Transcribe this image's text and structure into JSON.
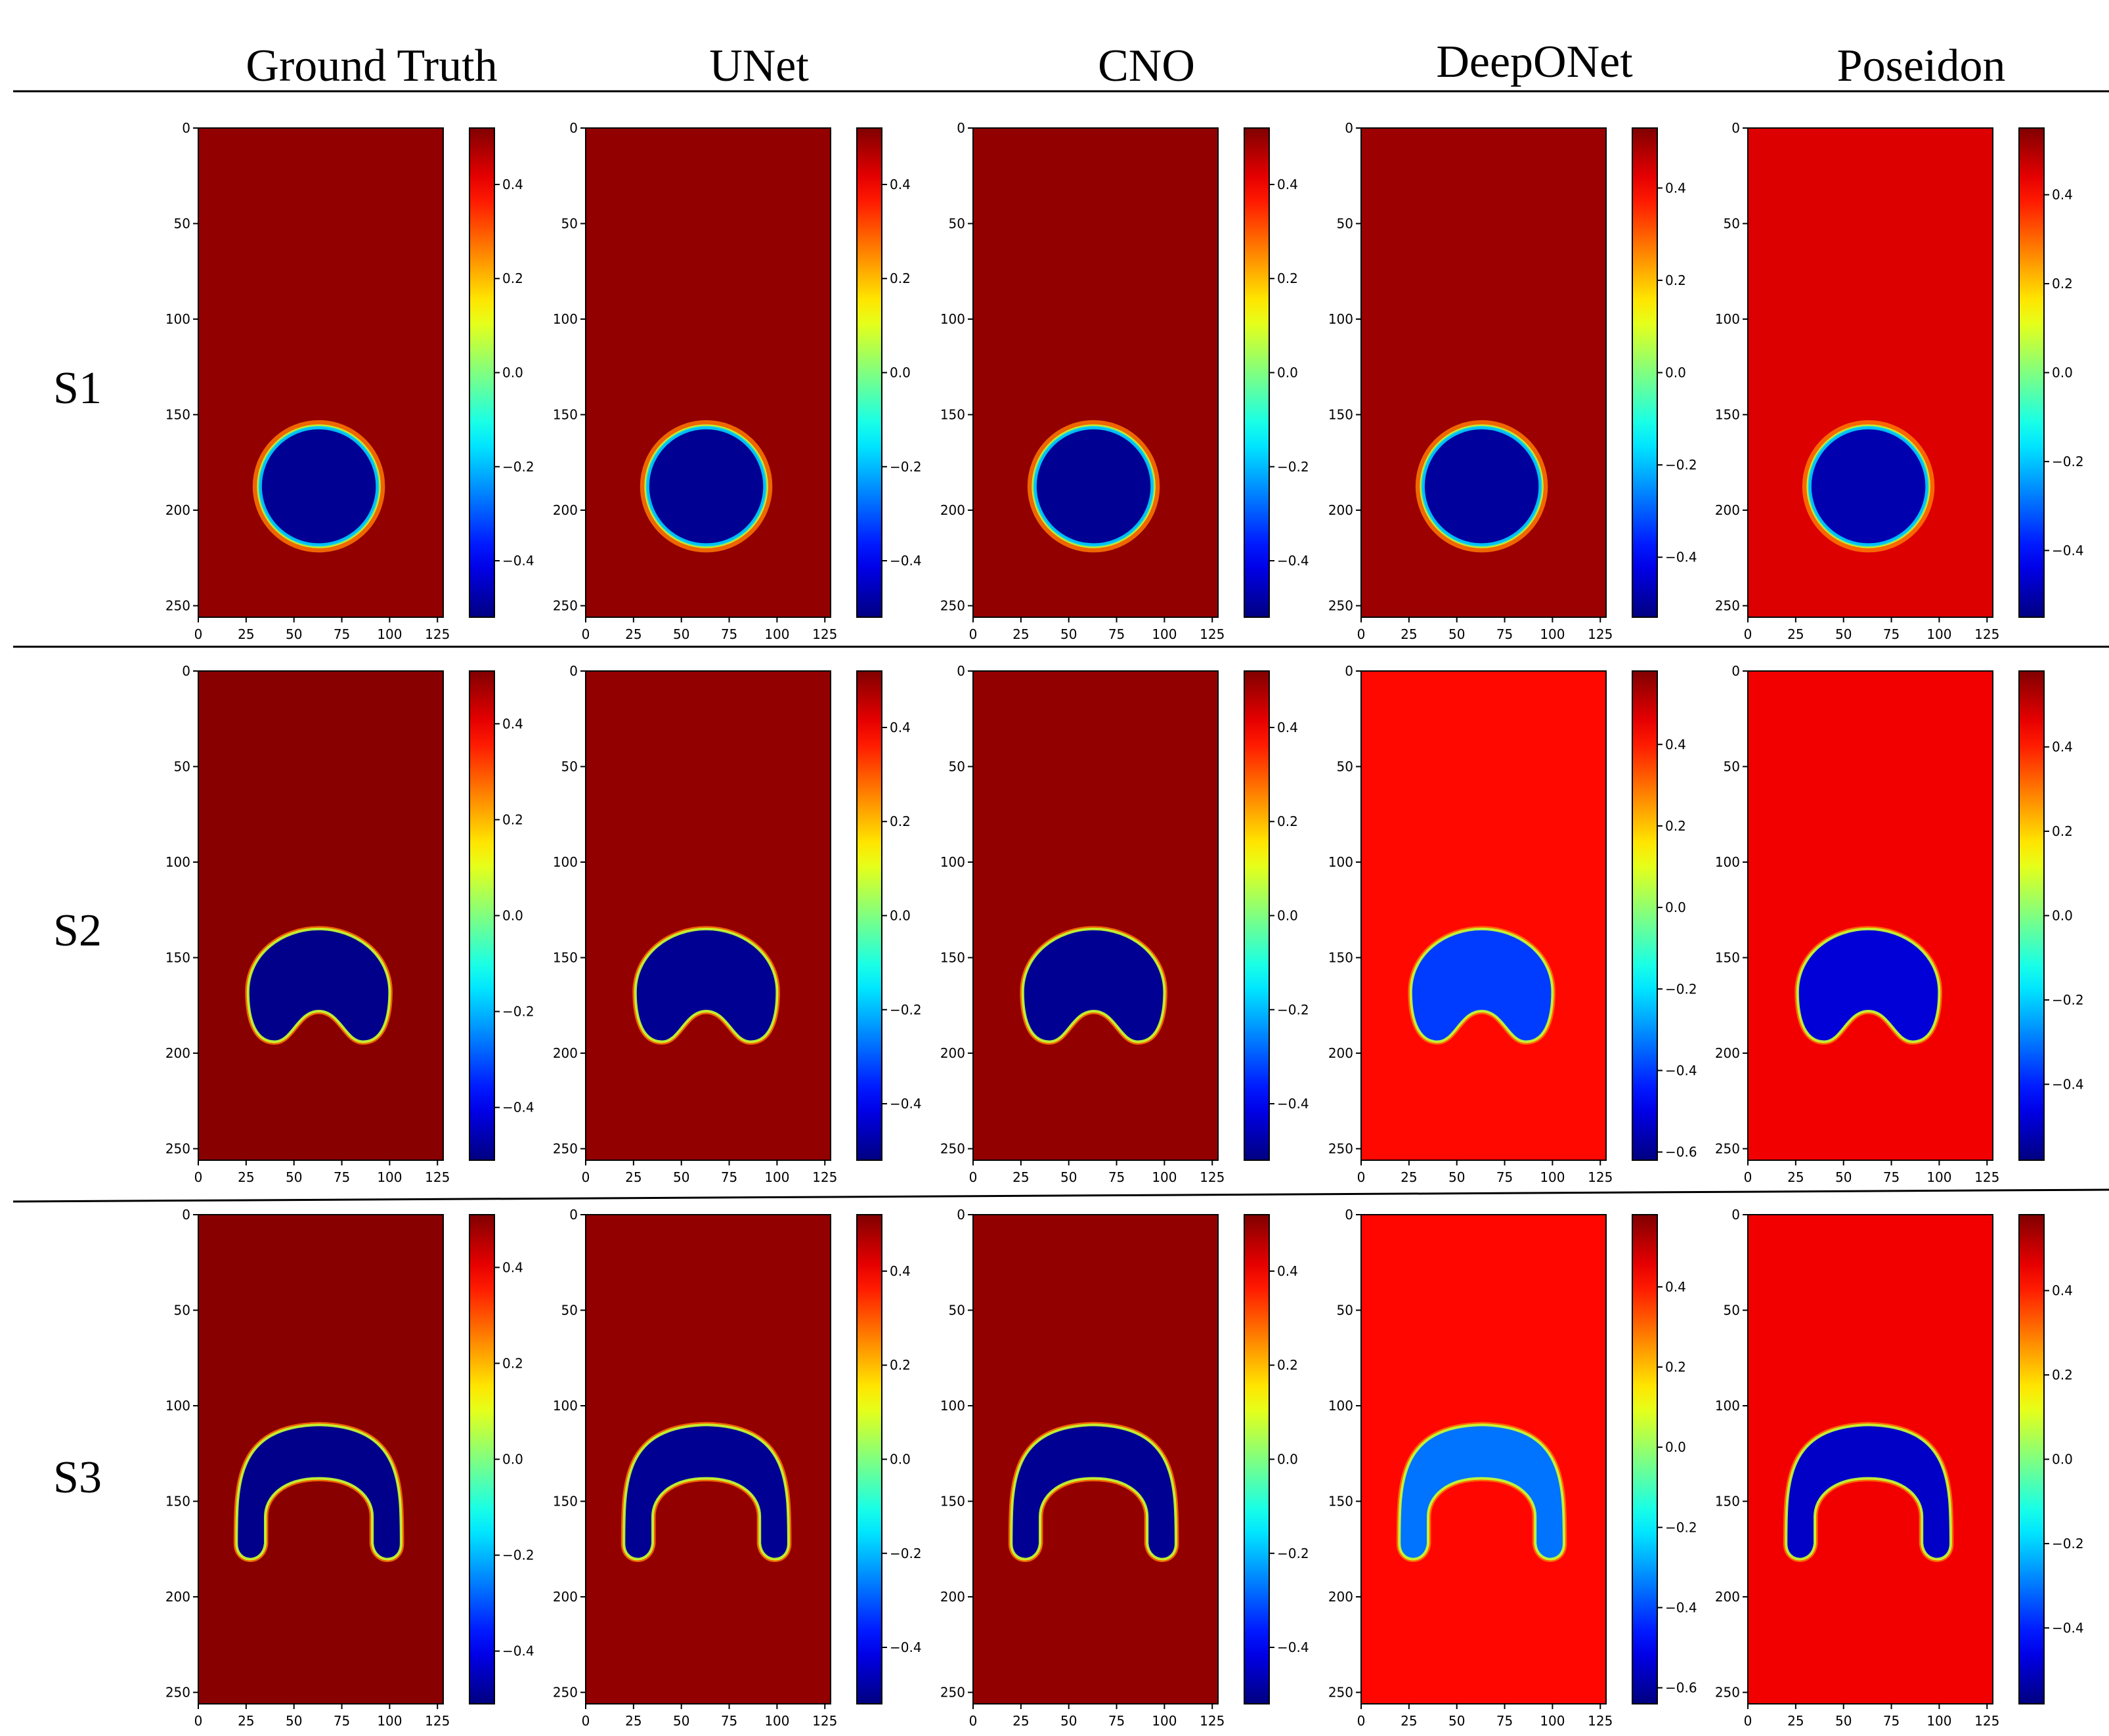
{
  "columns": [
    "Ground Truth",
    "UNet",
    "CNO",
    "DeepONet",
    "Poseidon"
  ],
  "rows": [
    "S1",
    "S2",
    "S3"
  ],
  "chart_data": {
    "type": "heatmap",
    "colormap": "jet",
    "x_ticks": [
      0,
      25,
      50,
      75,
      100,
      125
    ],
    "y_ticks": [
      0,
      50,
      100,
      150,
      200,
      250
    ],
    "xlim": [
      0,
      128
    ],
    "ylim": [
      256,
      0
    ],
    "panels": [
      {
        "row": "S1",
        "column": "Ground Truth",
        "shape": "circle",
        "colorbar_ticks": [
          "0.4",
          "0.2",
          "0.0",
          "−0.2",
          "−0.4"
        ],
        "vmin": -0.52,
        "vmax": 0.52,
        "background_value": 0.5,
        "blob_value": -0.5
      },
      {
        "row": "S1",
        "column": "UNet",
        "shape": "circle",
        "colorbar_ticks": [
          "0.4",
          "0.2",
          "0.0",
          "−0.2",
          "−0.4"
        ],
        "vmin": -0.52,
        "vmax": 0.52,
        "background_value": 0.5,
        "blob_value": -0.5
      },
      {
        "row": "S1",
        "column": "CNO",
        "shape": "circle",
        "colorbar_ticks": [
          "0.4",
          "0.2",
          "0.0",
          "−0.2",
          "−0.4"
        ],
        "vmin": -0.52,
        "vmax": 0.52,
        "background_value": 0.5,
        "blob_value": -0.5
      },
      {
        "row": "S1",
        "column": "DeepONet",
        "shape": "circle",
        "colorbar_ticks": [
          "0.4",
          "0.2",
          "0.0",
          "−0.2",
          "−0.4"
        ],
        "vmin": -0.53,
        "vmax": 0.53,
        "background_value": 0.5,
        "blob_value": -0.5
      },
      {
        "row": "S1",
        "column": "Poseidon",
        "shape": "circle",
        "colorbar_ticks": [
          "0.4",
          "0.2",
          "0.0",
          "−0.2",
          "−0.4"
        ],
        "vmin": -0.55,
        "vmax": 0.55,
        "background_value": 0.45,
        "blob_value": -0.5
      },
      {
        "row": "S2",
        "column": "Ground Truth",
        "shape": "kidney",
        "colorbar_ticks": [
          "0.4",
          "0.2",
          "0.0",
          "−0.2",
          "−0.4"
        ],
        "vmin": -0.51,
        "vmax": 0.51,
        "background_value": 0.5,
        "blob_value": -0.5
      },
      {
        "row": "S2",
        "column": "UNet",
        "shape": "kidney",
        "colorbar_ticks": [
          "0.4",
          "0.2",
          "0.0",
          "−0.2",
          "−0.4"
        ],
        "vmin": -0.52,
        "vmax": 0.52,
        "background_value": 0.5,
        "blob_value": -0.5
      },
      {
        "row": "S2",
        "column": "CNO",
        "shape": "kidney",
        "colorbar_ticks": [
          "0.4",
          "0.2",
          "0.0",
          "−0.2",
          "−0.4"
        ],
        "vmin": -0.52,
        "vmax": 0.52,
        "background_value": 0.5,
        "blob_value": -0.5
      },
      {
        "row": "S2",
        "column": "DeepONet",
        "shape": "kidney",
        "colorbar_ticks": [
          "0.4",
          "0.2",
          "0.0",
          "−0.2",
          "−0.4",
          "−0.6"
        ],
        "vmin": -0.62,
        "vmax": 0.58,
        "background_value": 0.42,
        "blob_value": -0.4
      },
      {
        "row": "S2",
        "column": "Poseidon",
        "shape": "kidney",
        "colorbar_ticks": [
          "0.4",
          "0.2",
          "0.0",
          "−0.2",
          "−0.4"
        ],
        "vmin": -0.58,
        "vmax": 0.58,
        "background_value": 0.45,
        "blob_value": -0.48
      },
      {
        "row": "S3",
        "column": "Ground Truth",
        "shape": "arch",
        "colorbar_ticks": [
          "0.4",
          "0.2",
          "0.0",
          "−0.2",
          "−0.4"
        ],
        "vmin": -0.51,
        "vmax": 0.51,
        "background_value": 0.5,
        "blob_value": -0.5
      },
      {
        "row": "S3",
        "column": "UNet",
        "shape": "arch",
        "colorbar_ticks": [
          "0.4",
          "0.2",
          "0.0",
          "−0.2",
          "−0.4"
        ],
        "vmin": -0.52,
        "vmax": 0.52,
        "background_value": 0.5,
        "blob_value": -0.5
      },
      {
        "row": "S3",
        "column": "CNO",
        "shape": "arch",
        "colorbar_ticks": [
          "0.4",
          "0.2",
          "0.0",
          "−0.2",
          "−0.4"
        ],
        "vmin": -0.52,
        "vmax": 0.52,
        "background_value": 0.5,
        "blob_value": -0.5
      },
      {
        "row": "S3",
        "column": "DeepONet",
        "shape": "arch",
        "colorbar_ticks": [
          "0.4",
          "0.2",
          "0.0",
          "−0.2",
          "−0.4",
          "−0.6"
        ],
        "vmin": -0.64,
        "vmax": 0.58,
        "background_value": 0.42,
        "blob_value": -0.35
      },
      {
        "row": "S3",
        "column": "Poseidon",
        "shape": "arch",
        "colorbar_ticks": [
          "0.4",
          "0.2",
          "0.0",
          "−0.2",
          "−0.4"
        ],
        "vmin": -0.58,
        "vmax": 0.58,
        "background_value": 0.45,
        "blob_value": -0.5
      }
    ]
  }
}
